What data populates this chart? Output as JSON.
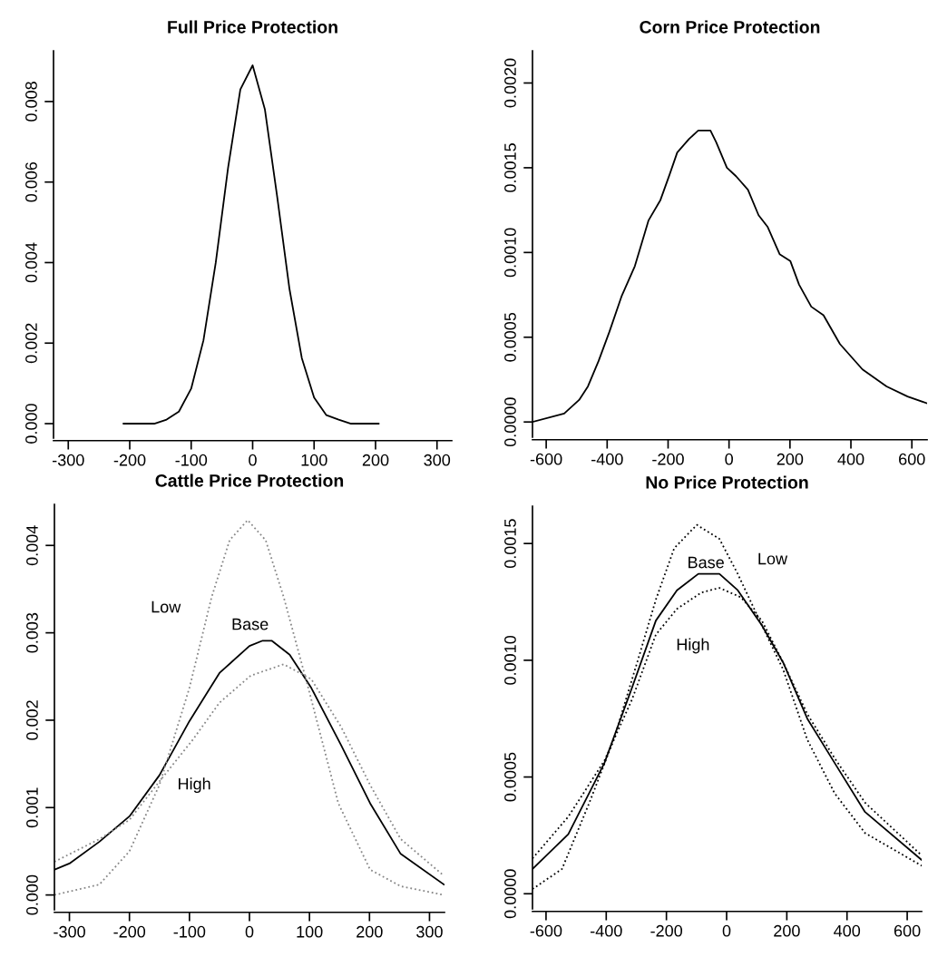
{
  "chart_data": [
    {
      "type": "line",
      "title": "Full Price Protection",
      "xlim": [
        -324,
        324
      ],
      "ylim": [
        -0.00036,
        0.00926
      ],
      "xticks": [
        -300,
        -200,
        -100,
        0,
        100,
        200,
        300
      ],
      "yticks": [
        {
          "value": 0,
          "label": "0.000"
        },
        {
          "value": 0.002,
          "label": "0.002"
        },
        {
          "value": 0.004,
          "label": "0.004"
        },
        {
          "value": 0.006,
          "label": "0.006"
        },
        {
          "value": 0.008,
          "label": "0.008"
        }
      ],
      "grid": false,
      "legend": false,
      "marker": "none",
      "series": [
        {
          "color": "#000000",
          "line_style": "solid",
          "x": [
            -210,
            -160,
            -140,
            -120,
            -100,
            -80,
            -60,
            -40,
            -20,
            0,
            20,
            40,
            60,
            80,
            100,
            120,
            140,
            160,
            205
          ],
          "values": [
            0,
            0,
            0.0001,
            0.0003,
            0.00087,
            0.00207,
            0.004,
            0.00635,
            0.0083,
            0.0089,
            0.0078,
            0.00563,
            0.00334,
            0.00163,
            0.00065,
            0.00021,
            0.0001,
            0,
            0
          ]
        }
      ]
    },
    {
      "type": "line",
      "title": "Corn Price Protection",
      "xlim": [
        -645,
        650
      ],
      "ylim": [
        -9e-05,
        0.00219
      ],
      "xticks": [
        -600,
        -400,
        -200,
        0,
        200,
        400,
        600
      ],
      "yticks": [
        {
          "value": 0,
          "label": "0.0000"
        },
        {
          "value": 0.0005,
          "label": "0.0005"
        },
        {
          "value": 0.001,
          "label": "0.0010"
        },
        {
          "value": 0.0015,
          "label": "0.0015"
        },
        {
          "value": 0.002,
          "label": "0.0020"
        }
      ],
      "grid": false,
      "legend": false,
      "marker": "none",
      "series": [
        {
          "color": "#000000",
          "line_style": "solid",
          "x": [
            -645,
            -541,
            -492,
            -463,
            -428,
            -393,
            -353,
            -309,
            -264,
            -225,
            -195,
            -170,
            -131,
            -101,
            -61,
            -42,
            -7,
            23,
            62,
            97,
            127,
            166,
            201,
            230,
            270,
            310,
            364,
            438,
            517,
            586,
            650
          ],
          "values": [
            0,
            5e-05,
            0.00013,
            0.00021,
            0.00036,
            0.00053,
            0.00074,
            0.00092,
            0.00119,
            0.00131,
            0.00146,
            0.00159,
            0.00167,
            0.00172,
            0.00172,
            0.00165,
            0.0015,
            0.00145,
            0.00137,
            0.00122,
            0.00115,
            0.00099,
            0.00095,
            0.00081,
            0.00068,
            0.00063,
            0.00046,
            0.00031,
            0.00021,
            0.00015,
            0.00011
          ]
        }
      ]
    },
    {
      "type": "line",
      "title": "Cattle Price Protection",
      "xlim": [
        -325,
        325
      ],
      "ylim": [
        -0.00017,
        0.00447
      ],
      "xticks": [
        -300,
        -200,
        -100,
        0,
        100,
        200,
        300
      ],
      "yticks": [
        {
          "value": 0,
          "label": "0.000"
        },
        {
          "value": 0.001,
          "label": "0.001"
        },
        {
          "value": 0.002,
          "label": "0.002"
        },
        {
          "value": 0.003,
          "label": "0.003"
        },
        {
          "value": 0.004,
          "label": "0.004"
        }
      ],
      "grid": false,
      "legend": false,
      "marker": "none",
      "series": [
        {
          "name": "Base",
          "color": "#000000",
          "line_style": "solid",
          "x": [
            -325,
            -300,
            -250,
            -200,
            -150,
            -100,
            -50,
            0,
            22,
            37,
            67,
            103,
            153,
            201,
            252,
            324
          ],
          "values": [
            0.00029,
            0.00036,
            0.00061,
            0.0009,
            0.00137,
            0.00199,
            0.00254,
            0.00285,
            0.00291,
            0.00291,
            0.00275,
            0.00237,
            0.00171,
            0.00105,
            0.00047,
            0.00012
          ]
        },
        {
          "name": "Low",
          "color": "#888888",
          "line_style": "dotted",
          "x": [
            -325,
            -250,
            -200,
            -150,
            -100,
            -63,
            -33,
            -3,
            27,
            57,
            98,
            148,
            201,
            252,
            324
          ],
          "values": [
            0,
            0.00012,
            0.0005,
            0.00126,
            0.00237,
            0.00341,
            0.00406,
            0.00429,
            0.00406,
            0.00341,
            0.00237,
            0.00105,
            0.00029,
            0.0001,
            0
          ]
        },
        {
          "name": "High",
          "color": "#888888",
          "line_style": "dotted",
          "x": [
            -325,
            -250,
            -200,
            -150,
            -94,
            -50,
            2,
            57,
            103,
            153,
            201,
            252,
            324
          ],
          "values": [
            0.00038,
            0.00064,
            0.00086,
            0.0013,
            0.00178,
            0.0022,
            0.00251,
            0.00264,
            0.00247,
            0.00192,
            0.00126,
            0.00064,
            0.00022
          ]
        }
      ]
    },
    {
      "type": "line",
      "title": "No Price Protection",
      "xlim": [
        -645,
        648
      ],
      "ylim": [
        -6.5e-05,
        0.00166
      ],
      "xticks": [
        -600,
        -400,
        -200,
        0,
        200,
        400,
        600
      ],
      "yticks": [
        {
          "value": 0,
          "label": "0.0000"
        },
        {
          "value": 0.0005,
          "label": "0.0005"
        },
        {
          "value": 0.001,
          "label": "0.0010"
        },
        {
          "value": 0.0015,
          "label": "0.0015"
        }
      ],
      "grid": false,
      "legend": false,
      "marker": "none",
      "series": [
        {
          "name": "Base",
          "color": "#000000",
          "line_style": "solid",
          "x": [
            -645,
            -526,
            -406,
            -315,
            -235,
            -165,
            -94,
            -24,
            37,
            117,
            188,
            268,
            359,
            460,
            648
          ],
          "values": [
            0.000106,
            0.000255,
            0.00056,
            0.00088,
            0.00117,
            0.0013,
            0.00137,
            0.00137,
            0.0013,
            0.00115,
            0.00099,
            0.00075,
            0.00056,
            0.00035,
            0.000145
          ]
        },
        {
          "name": "Low",
          "color": "#000000",
          "line_style": "dotted",
          "x": [
            -645,
            -547,
            -456,
            -375,
            -295,
            -235,
            -174,
            -99,
            -24,
            37,
            117,
            188,
            268,
            359,
            460,
            648
          ],
          "values": [
            2e-05,
            0.000106,
            0.00039,
            0.00066,
            0.001,
            0.00126,
            0.00148,
            0.00158,
            0.00152,
            0.00137,
            0.00115,
            0.00096,
            0.00066,
            0.00043,
            0.00026,
            0.00012
          ]
        },
        {
          "name": "High",
          "color": "#000000",
          "line_style": "dotted",
          "x": [
            -645,
            -526,
            -406,
            -315,
            -235,
            -165,
            -84,
            -24,
            47,
            117,
            188,
            268,
            359,
            460,
            648
          ],
          "values": [
            0.000151,
            0.00033,
            0.00057,
            0.00083,
            0.00111,
            0.00122,
            0.00129,
            0.00131,
            0.00127,
            0.00117,
            0.00099,
            0.00077,
            0.00058,
            0.00039,
            0.000164
          ]
        }
      ]
    }
  ]
}
